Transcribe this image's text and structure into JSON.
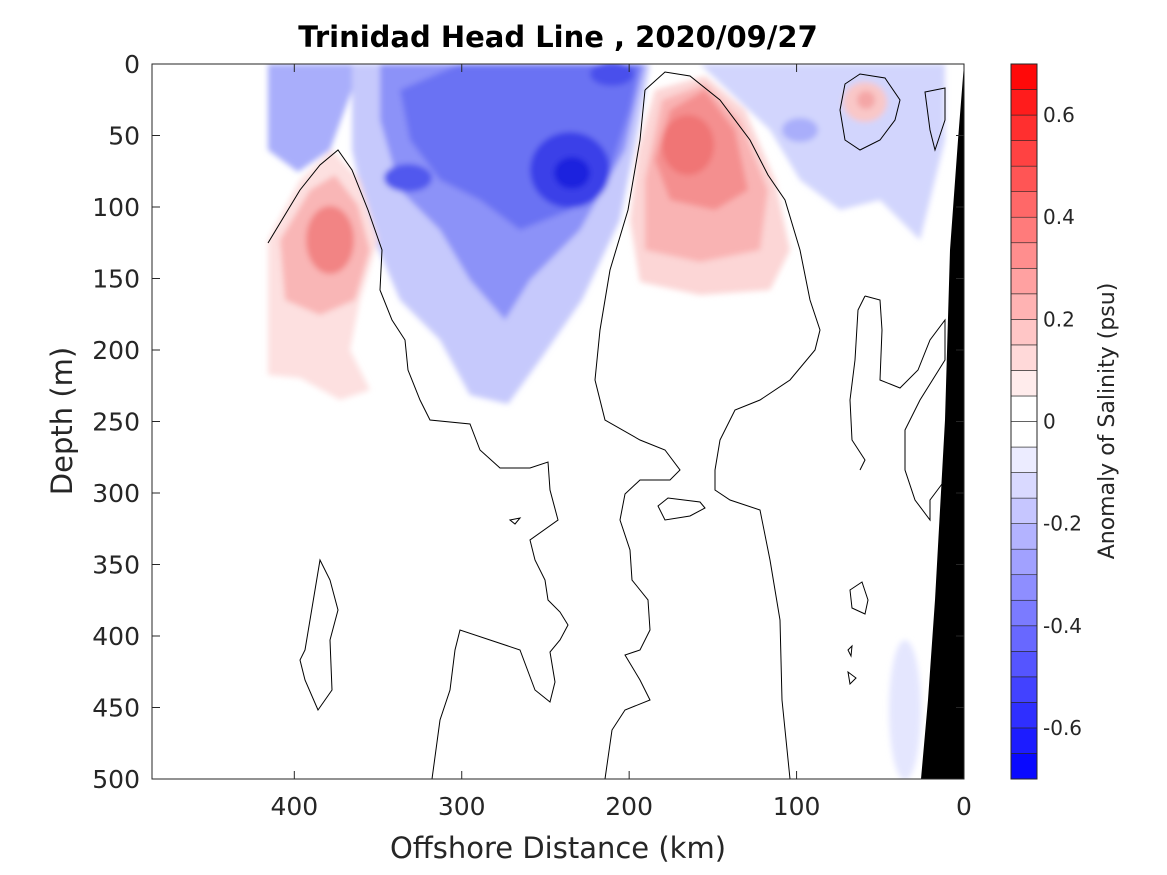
{
  "chart_data": {
    "type": "heatmap",
    "subtype": "filled contour section",
    "title": "Trinidad Head Line , 2020/09/27",
    "xlabel": "Offshore Distance (km)",
    "ylabel": "Depth (m)",
    "colorbar_label": "Anomaly of Salinity (psu)",
    "xlim": [
      485,
      0
    ],
    "ylim": [
      0,
      500
    ],
    "x_reversed": true,
    "y_reversed": true,
    "x_ticks": [
      400,
      300,
      200,
      100,
      0
    ],
    "y_ticks": [
      0,
      50,
      100,
      150,
      200,
      250,
      300,
      350,
      400,
      450,
      500
    ],
    "colorbar": {
      "min": -0.7,
      "max": 0.7,
      "step": 0.05,
      "ticks": [
        0.6,
        0.4,
        0.2,
        0,
        -0.2,
        -0.4,
        -0.6
      ],
      "colormap": "blue-white-red",
      "negative_color": "#0000ff",
      "positive_color": "#ff0000",
      "neutral_color": "#ffffff"
    },
    "data_extent_km": [
      0,
      420
    ],
    "bathymetry_color": "#000000",
    "features": [
      {
        "name": "fresh anomaly core (surface, mid-shelf)",
        "center_x_km": 240,
        "center_depth_m": 75,
        "min_value": -0.6
      },
      {
        "name": "fresh anomaly (offshore surface)",
        "center_x_km": 335,
        "center_depth_m": 80,
        "min_value": -0.45
      },
      {
        "name": "saline anomaly core",
        "center_x_km": 170,
        "center_depth_m": 60,
        "max_value": 0.35
      },
      {
        "name": "saline anomaly (offshore)",
        "center_x_km": 385,
        "center_depth_m": 125,
        "max_value": 0.3
      },
      {
        "name": "small saline patch (nearshore)",
        "center_x_km": 60,
        "center_depth_m": 25,
        "max_value": 0.15
      }
    ]
  }
}
